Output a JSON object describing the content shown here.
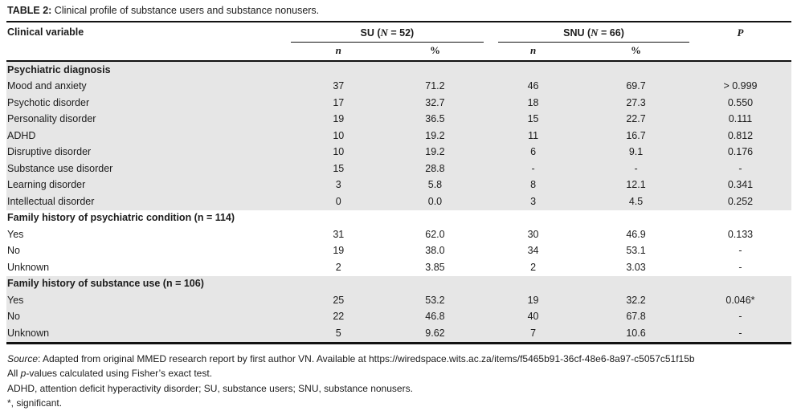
{
  "page": {
    "title_label": "TABLE 2:",
    "title_text": " Clinical profile of substance users and substance nonusers."
  },
  "table": {
    "headers": {
      "clinical_variable": "Clinical variable",
      "su_prefix": "SU (",
      "su_symbol": "N",
      "su_suffix": " = 52)",
      "snu_prefix": "SNU (",
      "snu_symbol": "N",
      "snu_suffix": " = 66)",
      "p": "P",
      "n": "n",
      "pct": "%"
    },
    "rows": [
      {
        "type": "section",
        "label": "Psychiatric diagnosis"
      },
      {
        "type": "data",
        "label": "Mood and anxiety",
        "su_n": "37",
        "su_pct": "71.2",
        "snu_n": "46",
        "snu_pct": "69.7",
        "p": "> 0.999"
      },
      {
        "type": "data",
        "label": "Psychotic disorder",
        "su_n": "17",
        "su_pct": "32.7",
        "snu_n": "18",
        "snu_pct": "27.3",
        "p": "0.550"
      },
      {
        "type": "data",
        "label": "Personality disorder",
        "su_n": "19",
        "su_pct": "36.5",
        "snu_n": "15",
        "snu_pct": "22.7",
        "p": "0.111"
      },
      {
        "type": "data",
        "label": "ADHD",
        "su_n": "10",
        "su_pct": "19.2",
        "snu_n": "11",
        "snu_pct": "16.7",
        "p": "0.812"
      },
      {
        "type": "data",
        "label": "Disruptive disorder",
        "su_n": "10",
        "su_pct": "19.2",
        "snu_n": "6",
        "snu_pct": "9.1",
        "p": "0.176"
      },
      {
        "type": "data",
        "label": "Substance use disorder",
        "su_n": "15",
        "su_pct": "28.8",
        "snu_n": "-",
        "snu_pct": "-",
        "p": "-"
      },
      {
        "type": "data",
        "label": "Learning disorder",
        "su_n": "3",
        "su_pct": "5.8",
        "snu_n": "8",
        "snu_pct": "12.1",
        "p": "0.341"
      },
      {
        "type": "data",
        "label": "Intellectual disorder",
        "su_n": "0",
        "su_pct": "0.0",
        "snu_n": "3",
        "snu_pct": "4.5",
        "p": "0.252"
      },
      {
        "type": "section",
        "label": "Family history of psychiatric condition (n = 114)"
      },
      {
        "type": "data",
        "label": "Yes",
        "su_n": "31",
        "su_pct": "62.0",
        "snu_n": "30",
        "snu_pct": "46.9",
        "p": "0.133"
      },
      {
        "type": "data",
        "label": "No",
        "su_n": "19",
        "su_pct": "38.0",
        "snu_n": "34",
        "snu_pct": "53.1",
        "p": "-"
      },
      {
        "type": "data",
        "label": "Unknown",
        "su_n": "2",
        "su_pct": "3.85",
        "snu_n": "2",
        "snu_pct": "3.03",
        "p": "-"
      },
      {
        "type": "section",
        "label": "Family history of substance use (n = 106)"
      },
      {
        "type": "data",
        "label": "Yes",
        "su_n": "25",
        "su_pct": "53.2",
        "snu_n": "19",
        "snu_pct": "32.2",
        "p": "0.046*"
      },
      {
        "type": "data",
        "label": "No",
        "su_n": "22",
        "su_pct": "46.8",
        "snu_n": "40",
        "snu_pct": "67.8",
        "p": "-"
      },
      {
        "type": "data",
        "label": "Unknown",
        "su_n": "5",
        "su_pct": "9.62",
        "snu_n": "7",
        "snu_pct": "10.6",
        "p": "-"
      }
    ]
  },
  "footnotes": {
    "source_label": "Source",
    "source_text": ": Adapted from original MMED research report by first author VN. Available at https://wiredspace.wits.ac.za/items/f5465b91-36cf-48e6-8a97-c5057c51f15b",
    "pvalues_prefix": "All ",
    "pvalues_symbol": "p",
    "pvalues_text": "-values calculated using Fisher’s exact test.",
    "abbreviations": "ADHD, attention deficit hyperactivity disorder; SU, substance users; SNU, substance nonusers.",
    "significance": "*, significant."
  },
  "colors": {
    "band_gray": "#e6e6e6",
    "rule_black": "#121212",
    "text": "#1c1c1c"
  }
}
